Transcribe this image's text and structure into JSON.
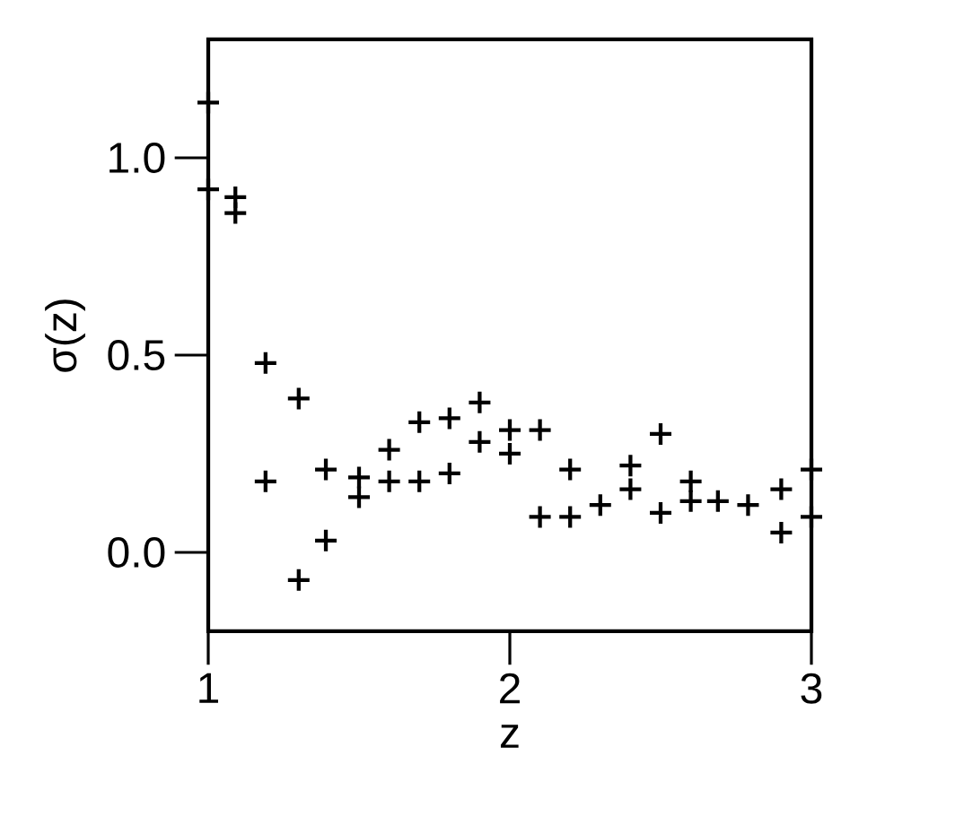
{
  "chart_data": {
    "type": "scatter",
    "xlabel": "z",
    "ylabel": "σ(z)",
    "marker": "cross",
    "xlim": [
      1,
      3
    ],
    "ylim": [
      -0.2,
      1.3
    ],
    "xticks": [
      1,
      2,
      3
    ],
    "yticks": [
      {
        "value": 0,
        "label": "0.0"
      },
      {
        "value": 0.5,
        "label": "0.5"
      },
      {
        "value": 1,
        "label": "1.0"
      }
    ],
    "series": [
      {
        "color": "#000000",
        "x": [
          1.0,
          1.0,
          1.09,
          1.09,
          1.19,
          1.19,
          1.3,
          1.3,
          1.39,
          1.39,
          1.5,
          1.5,
          1.6,
          1.6,
          1.7,
          1.7,
          1.8,
          1.8,
          1.9,
          1.9,
          2.0,
          2.0,
          2.1,
          2.1,
          2.2,
          2.2,
          2.3,
          2.4,
          2.4,
          2.5,
          2.5,
          2.6,
          2.6,
          2.69,
          2.79,
          2.9,
          2.9,
          3.0,
          3.0
        ],
        "values": [
          1.14,
          0.92,
          0.9,
          0.86,
          0.48,
          0.18,
          0.39,
          -0.07,
          0.21,
          0.03,
          0.19,
          0.14,
          0.26,
          0.18,
          0.33,
          0.18,
          0.34,
          0.2,
          0.38,
          0.28,
          0.31,
          0.25,
          0.31,
          0.09,
          0.21,
          0.09,
          0.12,
          0.22,
          0.16,
          0.3,
          0.1,
          0.18,
          0.13,
          0.13,
          0.12,
          0.16,
          0.05,
          0.21,
          0.09
        ]
      }
    ]
  }
}
